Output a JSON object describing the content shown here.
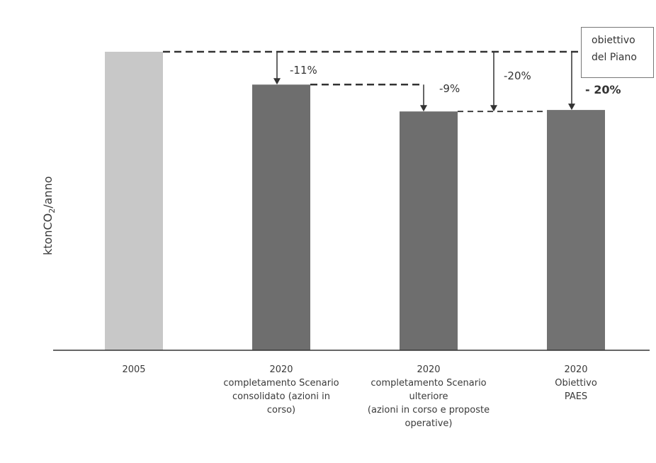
{
  "chart_data": {
    "type": "bar",
    "ylabel": "ktonCO2/anno",
    "ylabel_parts": {
      "main": "ktonCO",
      "sub": "2",
      "rest": "/anno"
    },
    "categories": [
      "2005",
      "2020\ncompletamento Scenario\nconsolidato (azioni in\ncorso)",
      "2020\ncompletamento Scenario\nulteriore\n(azioni in corso e proposte\noperative)",
      "2020\nObiettivo\nPAES"
    ],
    "values": [
      100,
      89,
      80,
      80.5
    ],
    "bar_colors": [
      "#c8c8c8",
      "#6e6e6e",
      "#6e6e6e",
      "#727272"
    ],
    "ylim": [
      0,
      100
    ],
    "annotations": [
      "-11%",
      "-9%",
      "-20%",
      "- 20%"
    ],
    "legend_text": [
      "obiettivo",
      "del Piano"
    ]
  }
}
